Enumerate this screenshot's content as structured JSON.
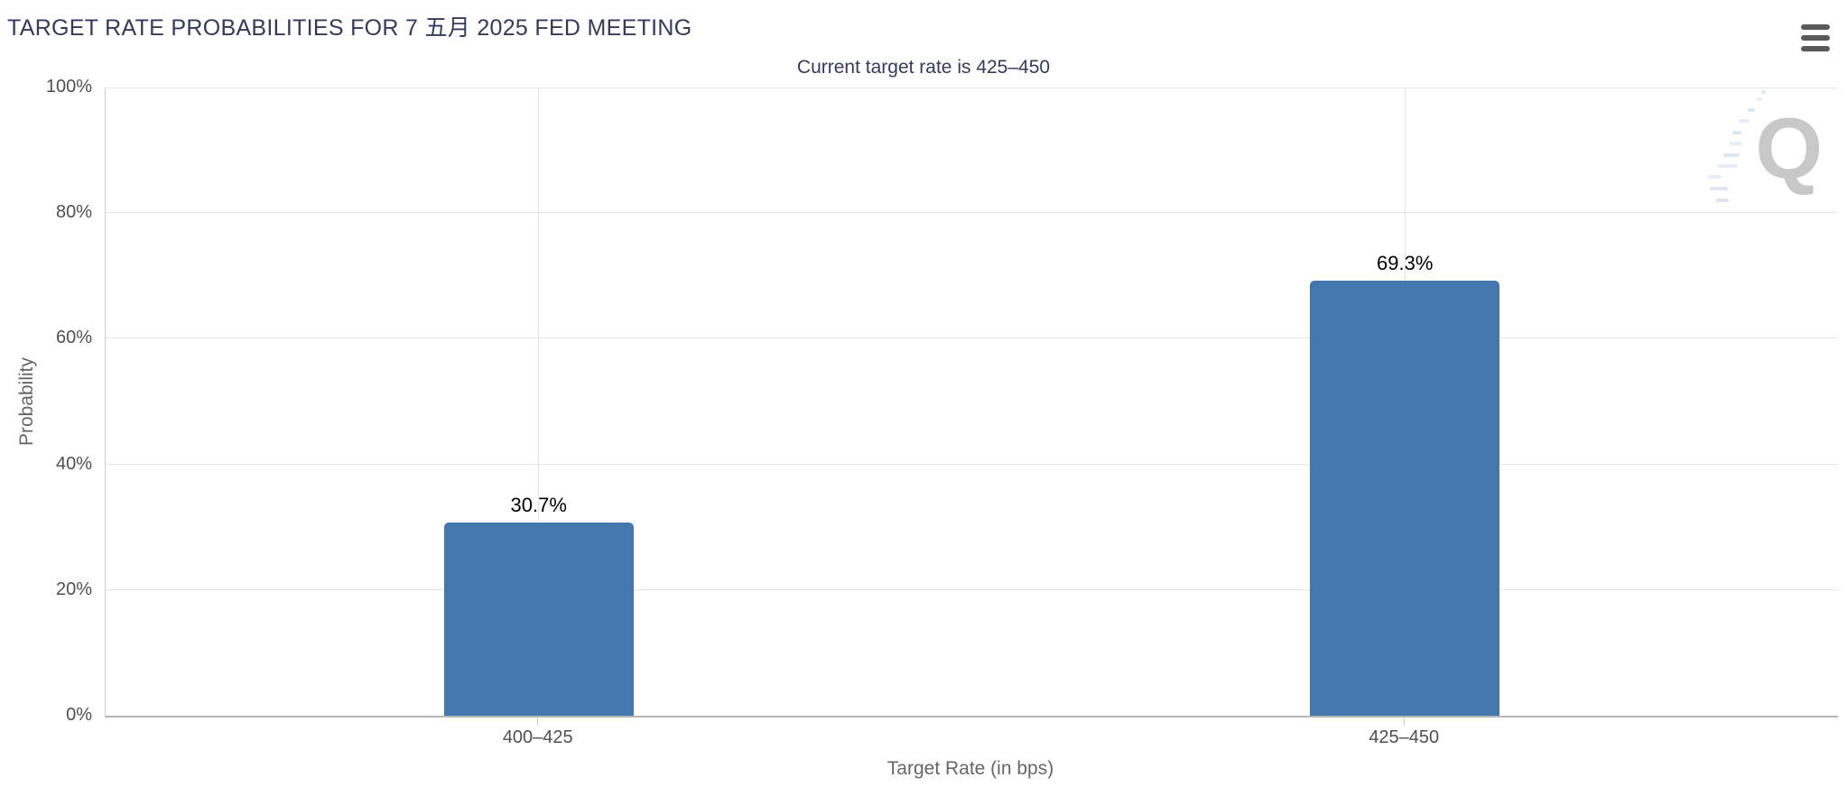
{
  "chart_data": {
    "type": "bar",
    "title": "TARGET RATE PROBABILITIES FOR 7 五月 2025 FED MEETING",
    "subtitle": "Current target rate is 425–450",
    "xlabel": "Target Rate (in bps)",
    "ylabel": "Probability",
    "categories": [
      "400–425",
      "425–450"
    ],
    "values": [
      30.7,
      69.3
    ],
    "value_labels": [
      "30.7%",
      "69.3%"
    ],
    "ylim": [
      0,
      100
    ],
    "ytick_labels": [
      "0%",
      "20%",
      "40%",
      "60%",
      "80%",
      "100%"
    ],
    "grid": true,
    "legend": "none",
    "bar_color": "#4377AE"
  },
  "menu": {
    "icon": "hamburger-icon"
  },
  "watermark": {
    "letter": "Q"
  },
  "colors": {
    "title_text": "#333A5E",
    "bar": "#4377AE",
    "tick_label": "#4F4F4F",
    "axis_title": "#666666",
    "data_label": "#000000",
    "gridline": "#E6E6E6",
    "axis_line": "#B5B5B5"
  }
}
